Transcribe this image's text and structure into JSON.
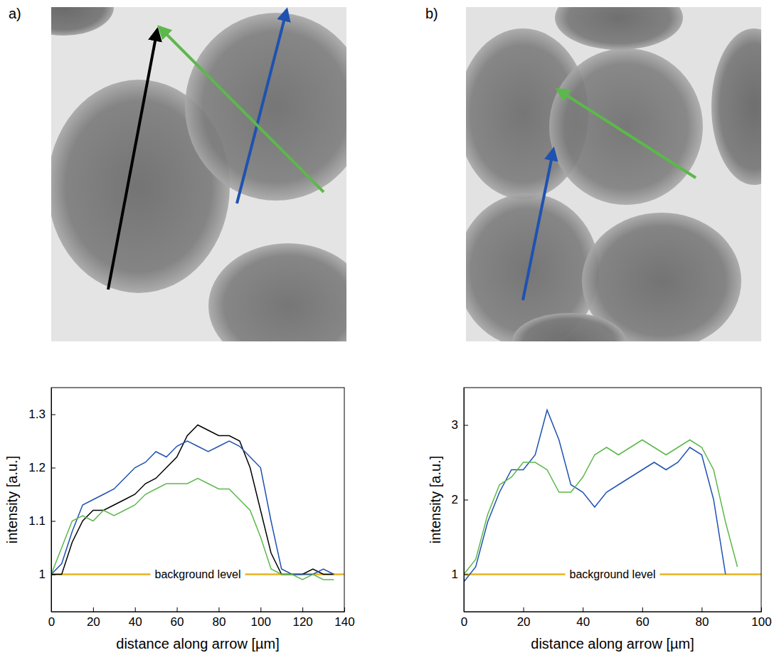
{
  "chart_data": [
    {
      "type": "line",
      "panel": "a)",
      "x_label": "distance along arrow [µm]",
      "y_label": "intensity [a.u.]",
      "xlim": [
        0,
        140
      ],
      "xticks": [
        0,
        20,
        40,
        60,
        80,
        100,
        120,
        140
      ],
      "ylim": [
        0.93,
        1.35
      ],
      "yticks": [
        1,
        1.1,
        1.2,
        1.3
      ],
      "hline": {
        "y": 1,
        "label": "background level",
        "color": "#e6b422"
      },
      "x": [
        0,
        5,
        10,
        15,
        20,
        25,
        30,
        35,
        40,
        45,
        50,
        55,
        60,
        65,
        70,
        75,
        80,
        85,
        90,
        95,
        100,
        105,
        110,
        115,
        120,
        125,
        130,
        135
      ],
      "series": [
        {
          "color": "#000000",
          "values": [
            1.0,
            1.0,
            1.06,
            1.1,
            1.12,
            1.12,
            1.13,
            1.14,
            1.15,
            1.17,
            1.18,
            1.2,
            1.22,
            1.26,
            1.28,
            1.27,
            1.26,
            1.26,
            1.25,
            1.2,
            1.12,
            1.04,
            1.0,
            1.0,
            1.0,
            1.01,
            1.0,
            1.0
          ]
        },
        {
          "color": "#1f52b0",
          "values": [
            1.0,
            1.02,
            1.08,
            1.13,
            1.14,
            1.15,
            1.16,
            1.18,
            1.2,
            1.21,
            1.23,
            1.22,
            1.24,
            1.25,
            1.24,
            1.23,
            1.24,
            1.25,
            1.24,
            1.22,
            1.2,
            1.1,
            1.01,
            1.0,
            1.0,
            1.0,
            1.01,
            1.0
          ]
        },
        {
          "color": "#5cb84a",
          "values": [
            1.0,
            1.05,
            1.1,
            1.11,
            1.1,
            1.12,
            1.11,
            1.12,
            1.13,
            1.15,
            1.16,
            1.17,
            1.17,
            1.17,
            1.18,
            1.17,
            1.16,
            1.16,
            1.14,
            1.12,
            1.07,
            1.01,
            1.0,
            1.0,
            0.99,
            1.0,
            0.99,
            0.99
          ]
        }
      ]
    },
    {
      "type": "line",
      "panel": "b)",
      "x_label": "distance along arrow [µm]",
      "y_label": "intensity [a.u.]",
      "xlim": [
        0,
        100
      ],
      "xticks": [
        0,
        20,
        40,
        60,
        80,
        100
      ],
      "ylim": [
        0.5,
        3.5
      ],
      "yticks": [
        1,
        2,
        3
      ],
      "hline": {
        "y": 1,
        "label": "background level",
        "color": "#e6b422"
      },
      "x": [
        0,
        4,
        8,
        12,
        16,
        20,
        24,
        28,
        32,
        36,
        40,
        44,
        48,
        52,
        56,
        60,
        64,
        68,
        72,
        76,
        80,
        84,
        88,
        92
      ],
      "series": [
        {
          "color": "#1f52b0",
          "values": [
            0.9,
            1.1,
            1.7,
            2.1,
            2.4,
            2.4,
            2.6,
            3.2,
            2.8,
            2.2,
            2.1,
            1.9,
            2.1,
            2.2,
            2.3,
            2.4,
            2.5,
            2.4,
            2.5,
            2.7,
            2.6,
            2.0,
            1.0,
            null
          ]
        },
        {
          "color": "#5cb84a",
          "values": [
            1.0,
            1.2,
            1.8,
            2.2,
            2.3,
            2.5,
            2.5,
            2.4,
            2.1,
            2.1,
            2.3,
            2.6,
            2.7,
            2.6,
            2.7,
            2.8,
            2.7,
            2.6,
            2.7,
            2.8,
            2.7,
            2.4,
            1.7,
            1.1
          ]
        }
      ]
    }
  ]
}
